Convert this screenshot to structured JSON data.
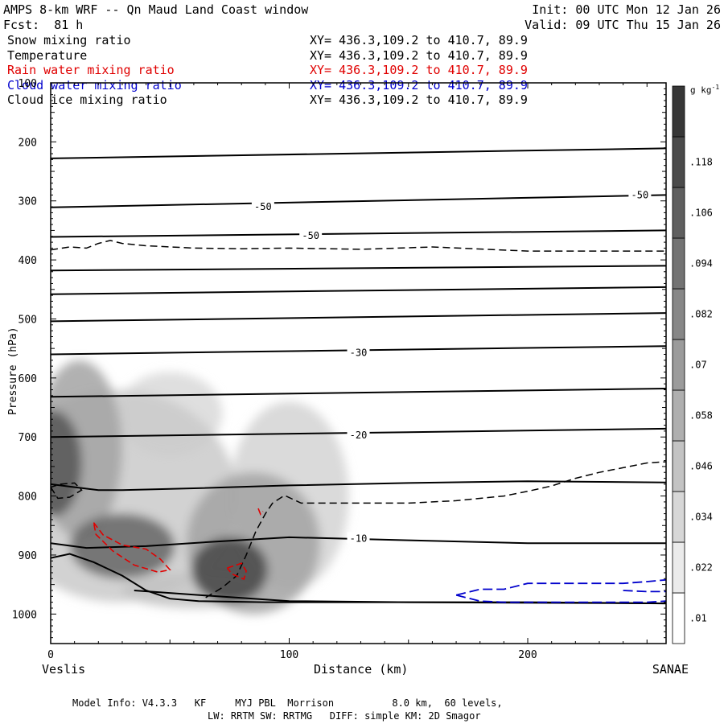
{
  "header": {
    "title": "AMPS 8-km WRF -- Qn Maud Land Coast window",
    "init": "Init: 00 UTC Mon 12 Jan 26",
    "forecast": "Fcst:  81 h",
    "valid": "Valid: 09 UTC Thu 15 Jan 26"
  },
  "fields": [
    {
      "name": "Snow mixing ratio",
      "xy": "XY= 436.3,109.2 to 410.7, 89.9",
      "color": "#000000"
    },
    {
      "name": "Temperature",
      "xy": "XY= 436.3,109.2 to 410.7, 89.9",
      "color": "#000000"
    },
    {
      "name": "Rain water mixing ratio",
      "xy": "XY= 436.3,109.2 to 410.7, 89.9",
      "color": "#e00000"
    },
    {
      "name": "Cloud water mixing ratio",
      "xy": "XY= 436.3,109.2 to 410.7, 89.9",
      "color": "#0000cc"
    },
    {
      "name": "Cloud ice mixing ratio",
      "xy": "XY= 436.3,109.2 to 410.7, 89.9",
      "color": "#000000"
    }
  ],
  "footer": {
    "line1": "Model Info: V4.3.3   KF     MYJ PBL  Morrison          8.0 km,  60 levels,",
    "line2": "LW: RRTM SW: RRTMG   DIFF: simple KM: 2D Smagor"
  },
  "chart_data": {
    "type": "cross-section",
    "xlabel": "Distance (km)",
    "ylabel": "Pressure (hPa)",
    "xlim": [
      0,
      258
    ],
    "ylim": [
      1050,
      100
    ],
    "x_ticks": [
      0,
      100,
      200
    ],
    "y_ticks": [
      100,
      200,
      300,
      400,
      500,
      600,
      700,
      800,
      900,
      1000
    ],
    "left_endpoint": "Veslis",
    "right_endpoint": "SANAE",
    "colorbar": {
      "unit": "g kg",
      "unit_exp": "-1",
      "levels": [
        0.01,
        0.022,
        0.034,
        0.046,
        0.058,
        0.07,
        0.082,
        0.094,
        0.106,
        0.118
      ],
      "labels": [
        ".01",
        ".022",
        ".034",
        ".046",
        ".058",
        ".07",
        ".082",
        ".094",
        ".106",
        ".118"
      ]
    },
    "temperature_contours": [
      {
        "x": [
          0,
          258
        ],
        "p": [
          228,
          211
        ]
      },
      {
        "x": [
          0,
          258
        ],
        "p": [
          311,
          290
        ]
      },
      {
        "x": [
          0,
          258
        ],
        "p": [
          361,
          350
        ]
      },
      {
        "x": [
          0,
          258
        ],
        "p": [
          418,
          410
        ]
      },
      {
        "x": [
          0,
          258
        ],
        "p": [
          458,
          446
        ]
      },
      {
        "x": [
          0,
          258
        ],
        "p": [
          504,
          490
        ]
      },
      {
        "x": [
          0,
          258
        ],
        "p": [
          560,
          546
        ]
      },
      {
        "x": [
          0,
          258
        ],
        "p": [
          632,
          618
        ]
      },
      {
        "x": [
          0,
          258
        ],
        "p": [
          700,
          686
        ]
      },
      {
        "x": [
          0,
          10,
          20,
          30,
          60,
          100,
          150,
          200,
          258
        ],
        "p": [
          780,
          785,
          790,
          790,
          787,
          782,
          778,
          775,
          777
        ]
      },
      {
        "x": [
          0,
          15,
          40,
          70,
          100,
          150,
          200,
          258
        ],
        "p": [
          880,
          888,
          885,
          877,
          870,
          875,
          880,
          880
        ]
      },
      {
        "x": [
          0,
          8,
          18,
          30,
          40,
          50,
          62,
          75,
          90,
          100,
          150,
          200,
          258
        ],
        "p": [
          905,
          898,
          912,
          935,
          960,
          974,
          978,
          979,
          980,
          980,
          980,
          980,
          982
        ]
      },
      {
        "x": [
          35,
          70,
          100,
          150,
          258
        ],
        "p": [
          960,
          970,
          978,
          980,
          982
        ]
      }
    ],
    "temperature_labels": [
      {
        "text": "-50",
        "x": 89,
        "p": 310
      },
      {
        "text": "-50",
        "x": 109,
        "p": 359
      },
      {
        "text": "-50",
        "x": 247,
        "p": 290
      },
      {
        "text": "-30",
        "x": 129,
        "p": 557
      },
      {
        "text": "-20",
        "x": 129,
        "p": 697
      },
      {
        "text": "-10",
        "x": 129,
        "p": 872
      }
    ],
    "cloud_ice_contours": [
      {
        "x": [
          0,
          8,
          15,
          20,
          25,
          30,
          40,
          60,
          80,
          100,
          130,
          160,
          200,
          230,
          258
        ],
        "p": [
          383,
          378,
          380,
          372,
          367,
          372,
          376,
          380,
          381,
          380,
          382,
          378,
          385,
          385,
          385
        ]
      },
      {
        "x": [
          0,
          3,
          8,
          13,
          10,
          4,
          0
        ],
        "p": [
          785,
          804,
          802,
          790,
          778,
          780,
          785
        ]
      },
      {
        "x": [
          65,
          72,
          78,
          82,
          86,
          90,
          93,
          98,
          105,
          110,
          150,
          170,
          190,
          200,
          210,
          220,
          230,
          240,
          250,
          258
        ],
        "p": [
          972,
          955,
          935,
          900,
          860,
          830,
          812,
          799,
          812,
          812,
          812,
          808,
          800,
          792,
          783,
          770,
          760,
          752,
          744,
          742
        ]
      }
    ],
    "rain_contours": [
      {
        "x": [
          18,
          22,
          30,
          40,
          46,
          50,
          45,
          35,
          26,
          19,
          18
        ],
        "p": [
          845,
          866,
          883,
          890,
          907,
          925,
          929,
          917,
          893,
          865,
          845
        ]
      },
      {
        "x": [
          74,
          80,
          82,
          81,
          76,
          74
        ],
        "p": [
          922,
          914,
          927,
          941,
          932,
          922
        ]
      },
      {
        "x": [
          87,
          88,
          89
        ],
        "p": [
          821,
          831,
          826
        ]
      }
    ],
    "cloud_water_contours": [
      {
        "x": [
          170,
          180,
          190,
          200,
          220,
          240,
          250,
          258
        ],
        "p": [
          968,
          958,
          958,
          948,
          948,
          948,
          945,
          942
        ]
      },
      {
        "x": [
          170,
          180,
          190,
          210,
          230,
          250,
          258
        ],
        "p": [
          968,
          978,
          980,
          980,
          980,
          980,
          978
        ]
      },
      {
        "x": [
          240,
          250,
          258
        ],
        "p": [
          960,
          962,
          962
        ]
      }
    ],
    "snow_blobs": [
      {
        "x": 1,
        "p": 745,
        "rx": 12,
        "rp": 90,
        "value": 0.1
      },
      {
        "x": 12,
        "p": 720,
        "rx": 18,
        "rp": 150,
        "value": 0.05
      },
      {
        "x": 30,
        "p": 885,
        "rx": 22,
        "rp": 55,
        "value": 0.09
      },
      {
        "x": 28,
        "p": 800,
        "rx": 50,
        "rp": 180,
        "value": 0.025
      },
      {
        "x": 50,
        "p": 660,
        "rx": 22,
        "rp": 70,
        "value": 0.015
      },
      {
        "x": 75,
        "p": 925,
        "rx": 16,
        "rp": 55,
        "value": 0.11
      },
      {
        "x": 85,
        "p": 880,
        "rx": 28,
        "rp": 120,
        "value": 0.05
      },
      {
        "x": 100,
        "p": 800,
        "rx": 25,
        "rp": 160,
        "value": 0.018
      },
      {
        "x": 60,
        "p": 960,
        "rx": 30,
        "rp": 30,
        "value": 0.03
      }
    ]
  }
}
